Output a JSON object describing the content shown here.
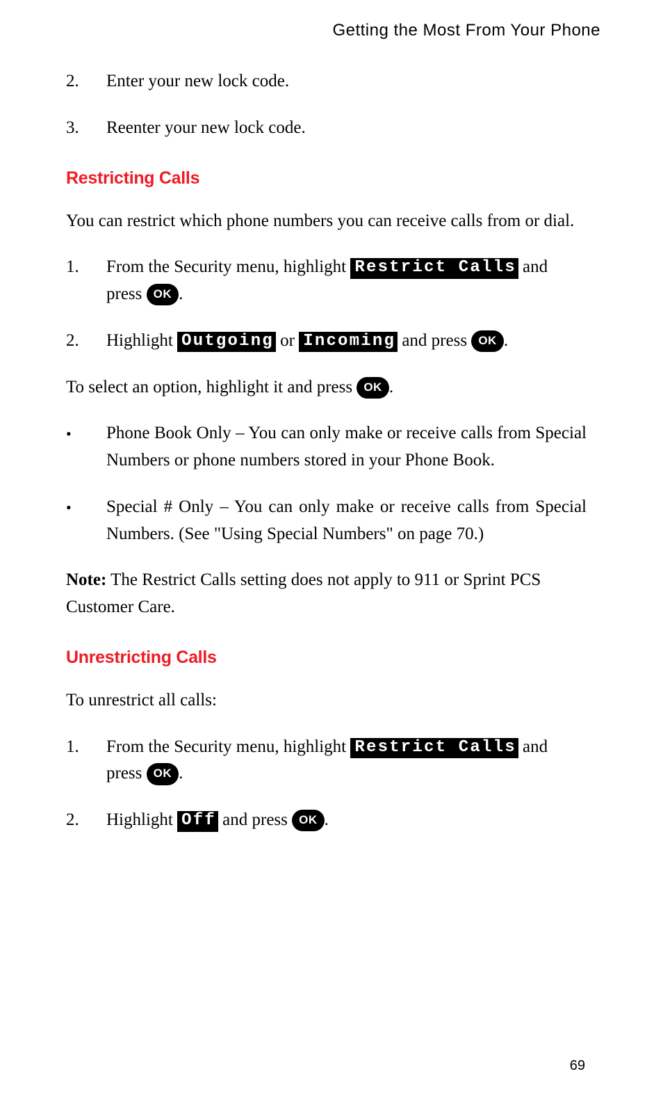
{
  "header": {
    "running_title": "Getting the Most From Your Phone"
  },
  "intro_steps": [
    {
      "num": "2.",
      "text": "Enter your new lock code."
    },
    {
      "num": "3.",
      "text": "Reenter your new lock code."
    }
  ],
  "section_restricting": {
    "heading": "Restricting Calls",
    "intro": "You can restrict which phone numbers you can receive calls from or dial.",
    "steps": [
      {
        "num": "1.",
        "pre": "From the Security menu, highlight ",
        "menu": "Restrict Calls",
        "mid": " and press ",
        "button": "OK",
        "post": "."
      },
      {
        "num": "2.",
        "pre": "Highlight ",
        "menu1": "Outgoing",
        "mid1": " or ",
        "menu2": "Incoming",
        "mid2": " and press ",
        "button": "OK",
        "post": "."
      }
    ],
    "select_line": {
      "pre": "To select an option, highlight it and press ",
      "button": "OK",
      "post": "."
    },
    "bullets": [
      "Phone Book Only – You can only make or receive calls from Special Numbers or phone numbers stored in your Phone Book.",
      "Special # Only – You can only make or receive calls from Special Numbers. (See \"Using Special Numbers\" on page 70.)"
    ],
    "note_label": "Note:",
    "note_text": " The Restrict Calls setting does not apply to 911 or Sprint PCS Customer Care."
  },
  "section_unrestricting": {
    "heading": "Unrestricting Calls",
    "intro": "To unrestrict all calls:",
    "steps": [
      {
        "num": "1.",
        "pre": "From the Security menu, highlight ",
        "menu": "Restrict Calls",
        "mid": " and press ",
        "button": "OK",
        "post": "."
      },
      {
        "num": "2.",
        "pre": "Highlight ",
        "menu": "Off",
        "mid": " and press ",
        "button": "OK",
        "post": "."
      }
    ]
  },
  "page_number": "69",
  "colors": {
    "heading_color": "#ee1c25",
    "text_color": "#000000",
    "menu_bg": "#000000",
    "menu_fg": "#ffffff",
    "ok_bg": "#000000",
    "ok_fg": "#ffffff",
    "page_bg": "#ffffff"
  },
  "typography": {
    "body_font": "Georgia / Times serif",
    "heading_font": "Helvetica / Arial sans-serif",
    "menu_font": "Courier monospace",
    "body_size_pt": 19,
    "heading_size_pt": 19,
    "running_head_size_pt": 18,
    "page_number_size_pt": 15
  }
}
